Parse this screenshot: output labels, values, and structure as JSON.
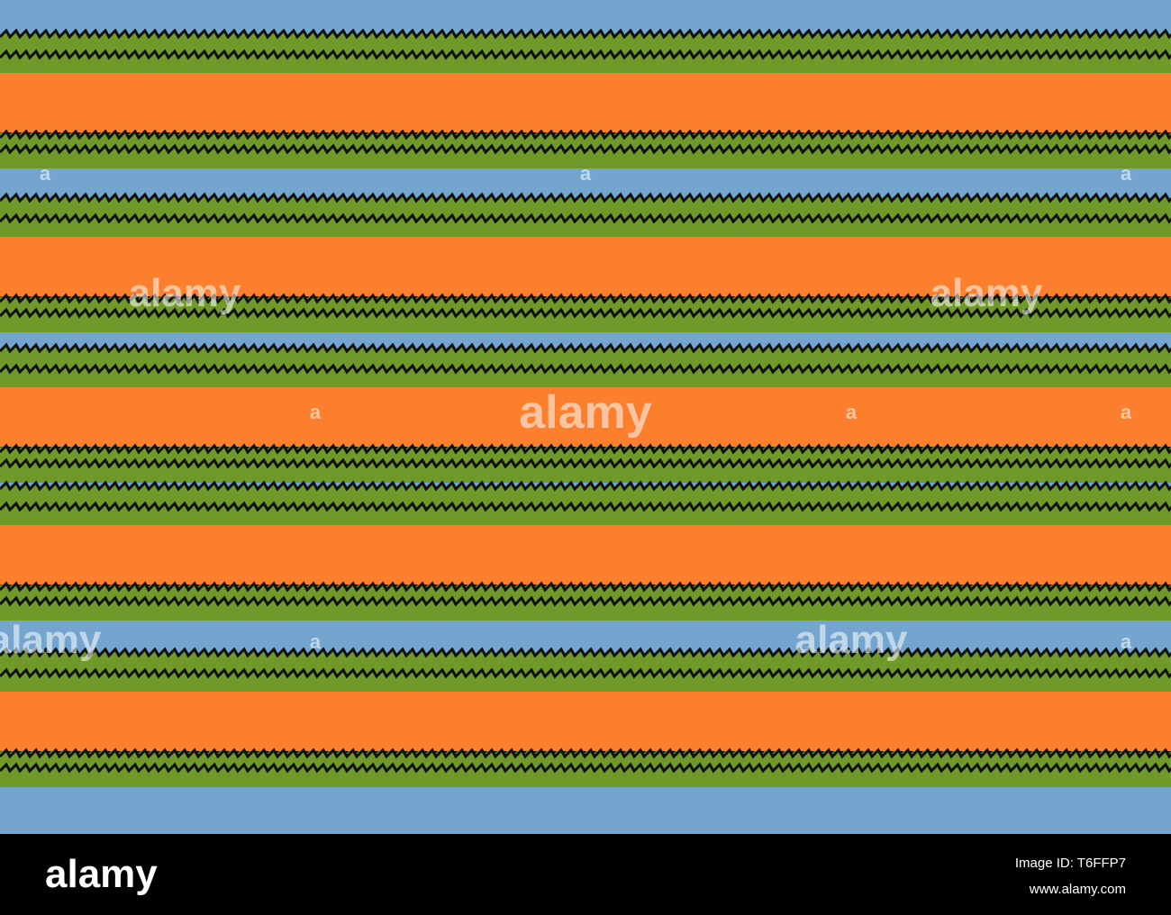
{
  "watermark": {
    "logo": "alamy",
    "mark": "a"
  },
  "footer": {
    "logo": "alamy",
    "image_id": "Image ID: T6FFP7",
    "url": "www.alamy.com"
  }
}
